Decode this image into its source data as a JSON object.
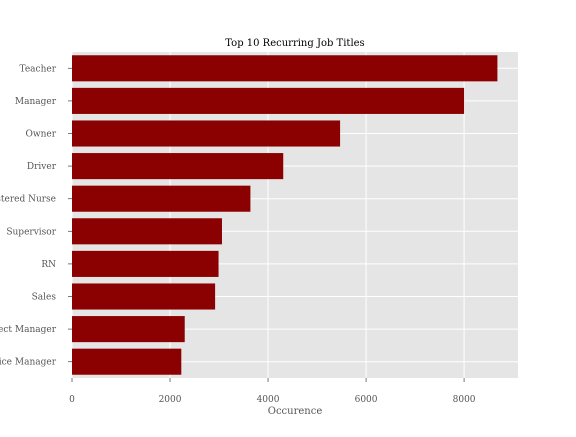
{
  "chart_data": {
    "type": "bar",
    "orientation": "horizontal",
    "title": "Top 10 Recurring Job Titles",
    "xlabel": "Occurence",
    "ylabel": "",
    "categories": [
      "Teacher",
      "Manager",
      "Owner",
      "Driver",
      "Registered Nurse",
      "Supervisor",
      "RN",
      "Sales",
      "Project Manager",
      "Office Manager"
    ],
    "values": [
      8680,
      8000,
      5470,
      4310,
      3640,
      3060,
      2990,
      2920,
      2300,
      2230
    ],
    "xlim": [
      0,
      9100
    ],
    "xticks": [
      0,
      2000,
      4000,
      6000,
      8000
    ],
    "grid": true,
    "colors": {
      "bar": "#8b0000",
      "plot_background": "#e5e5e5",
      "grid": "#ffffff"
    }
  }
}
